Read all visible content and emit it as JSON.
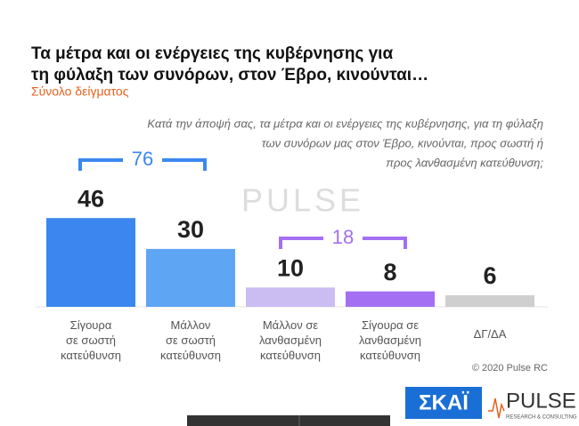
{
  "chart_data": {
    "type": "bar",
    "title": [
      "Τα μέτρα και οι ενέργειες της κυβέρνησης για",
      "τη φύλαξη των συνόρων, στον Έβρο, κινούνται…"
    ],
    "subtitle": "Σύνολο δείγματος",
    "question": [
      "Κατά την άποψή σας, τα μέτρα και οι ενέργειες της κυβέρνησης, για τη φύλαξη",
      "των συνόρων μας στον Έβρο, κινούνται, προς σωστή ή",
      "προς λανθασμένη κατεύθυνση;"
    ],
    "categories": [
      "Σίγουρα\nσε σωστή\nκατεύθυνση",
      "Μάλλον\nσε σωστή\nκατεύθυνση",
      "Μάλλον σε\nλανθασμένη\nκατεύθυνση",
      "Σίγουρα σε\nλανθασμένη\nκατεύθυνση",
      "ΔΓ/ΔΑ"
    ],
    "values": [
      46,
      30,
      10,
      8,
      6
    ],
    "colors": [
      "#3b87ef",
      "#5ea5f3",
      "#cbbcf2",
      "#a46ff2",
      "#cfcfcf"
    ],
    "annotations": [
      {
        "text": 76,
        "color": "#3b87ef"
      },
      {
        "text": 18,
        "color": "#a46ff2"
      }
    ],
    "copyright": "© 2020 Pulse RC",
    "watermark": "PULSE",
    "logos": {
      "skai": "ΣΚΑΪ",
      "pulse": "PULSE",
      "pulse_sub": "RESEARCH & CONSULTING"
    }
  }
}
